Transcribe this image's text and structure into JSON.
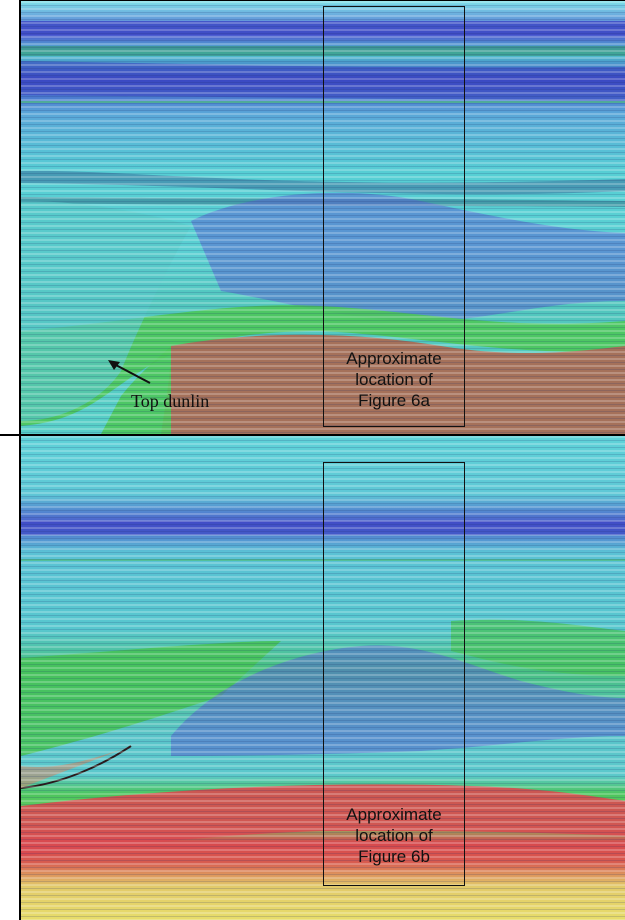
{
  "panels": [
    {
      "box_label": [
        "Approximate",
        "location of",
        "Figure 6a"
      ],
      "annotation": "Top dunlin"
    },
    {
      "box_label": [
        "Approximate",
        "location of",
        "Figure 6b"
      ]
    }
  ],
  "colors": {
    "deep_blue": "#3a48c8",
    "cyan": "#5fd0d8",
    "green": "#4fc35a",
    "brown": "#a5715a",
    "red": "#d9484f",
    "yellow": "#e6dd6a"
  }
}
